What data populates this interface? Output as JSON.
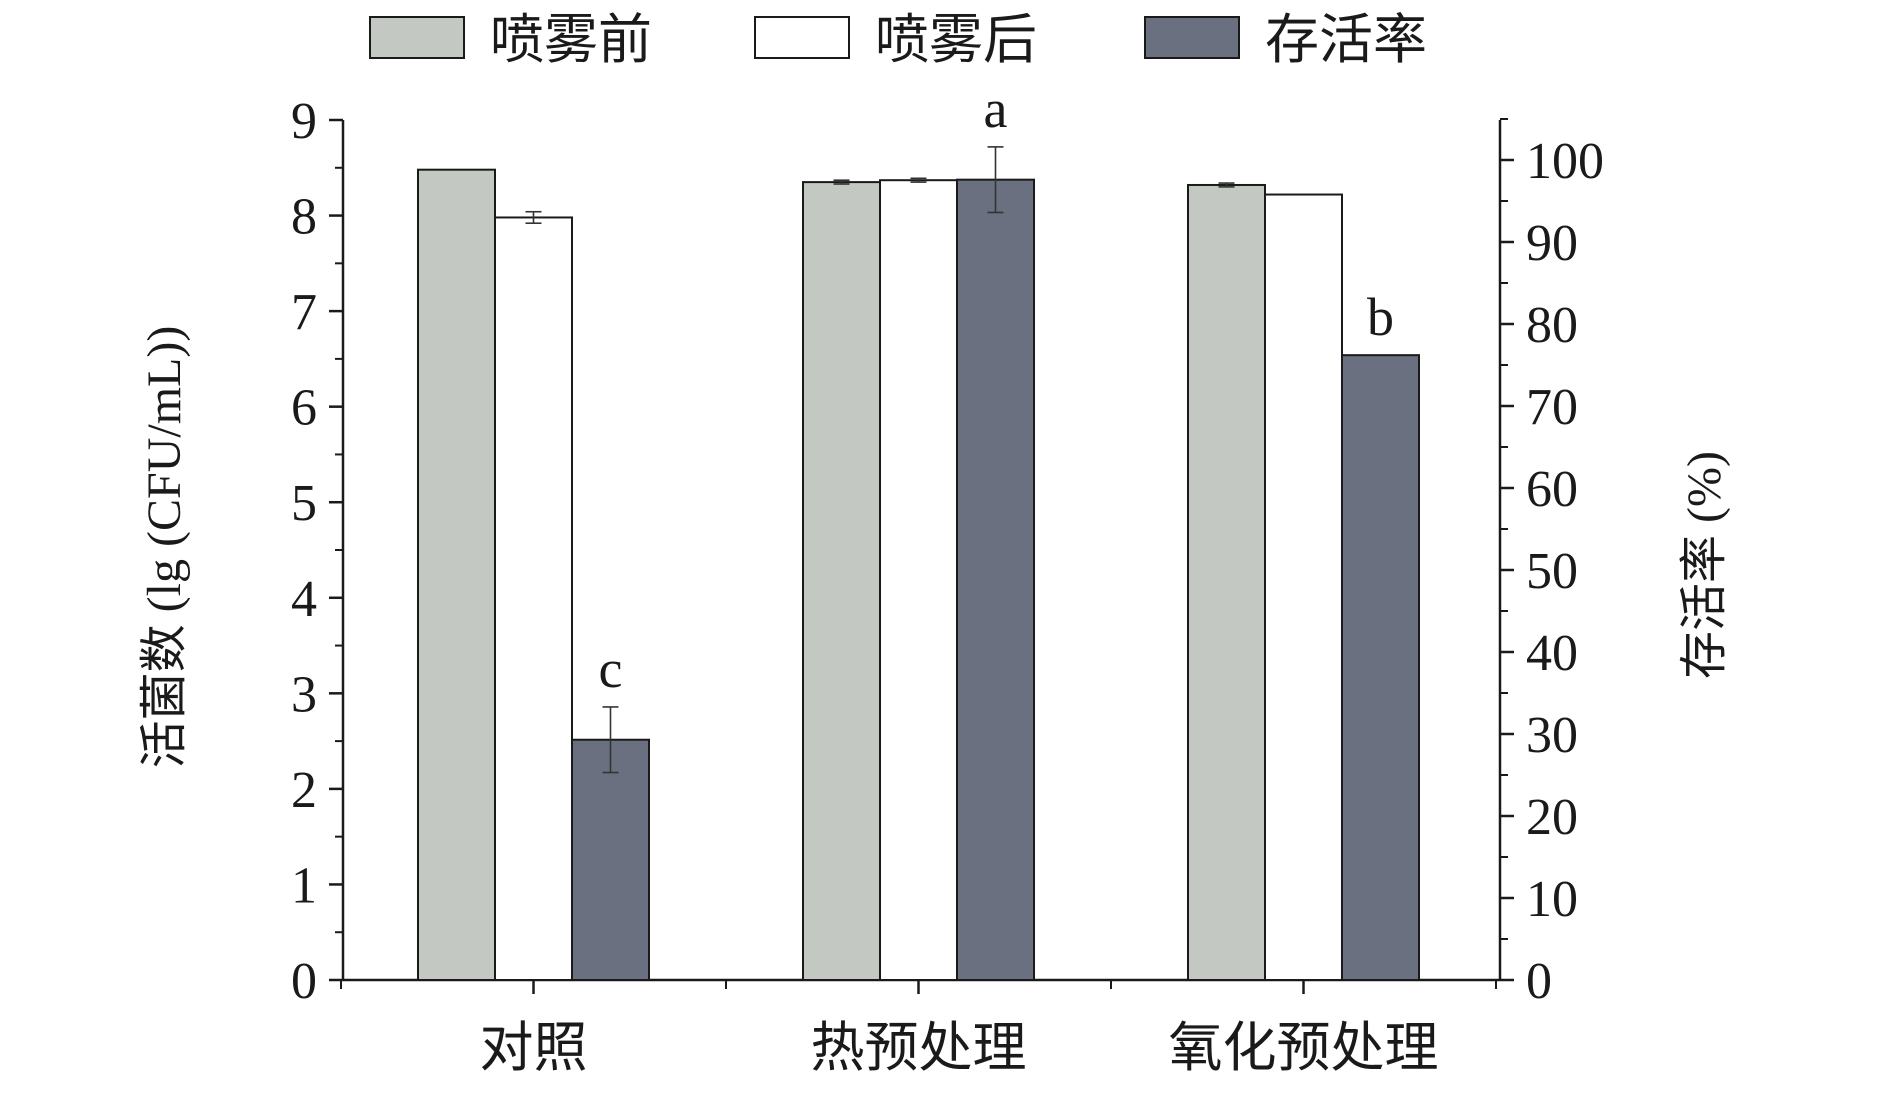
{
  "chart_data": {
    "type": "bar",
    "title": "",
    "categories": [
      "对照",
      "热预处理",
      "氧化预处理"
    ],
    "series": [
      {
        "name": "喷雾前",
        "axis": "left",
        "color": "#c3c8c3",
        "values": [
          8.48,
          8.35,
          8.32
        ],
        "errors": [
          0,
          0.02,
          0.02
        ]
      },
      {
        "name": "喷雾后",
        "axis": "left",
        "color": "#ffffff",
        "values": [
          7.98,
          8.37,
          8.22
        ],
        "errors": [
          0.06,
          0.02,
          0
        ]
      },
      {
        "name": "存活率",
        "axis": "right",
        "color": "#6b7080",
        "values": [
          29.3,
          97.6,
          76.2
        ],
        "errors": [
          4.0,
          4.0,
          0
        ],
        "annotations": [
          "c",
          "a",
          "b"
        ]
      }
    ],
    "y_left": {
      "label": "活菌数 (lg (CFU/mL))",
      "range": [
        0,
        9
      ],
      "ticks": [
        0,
        1,
        2,
        3,
        4,
        5,
        6,
        7,
        8,
        9
      ]
    },
    "y_right": {
      "label": "存活率 (%)",
      "range": [
        0,
        100
      ],
      "ticks": [
        0,
        10,
        20,
        30,
        40,
        50,
        60,
        70,
        80,
        90,
        100
      ]
    },
    "legend": {
      "position": "top",
      "items": [
        "喷雾前",
        "喷雾后",
        "存活率"
      ]
    },
    "grid": false
  }
}
